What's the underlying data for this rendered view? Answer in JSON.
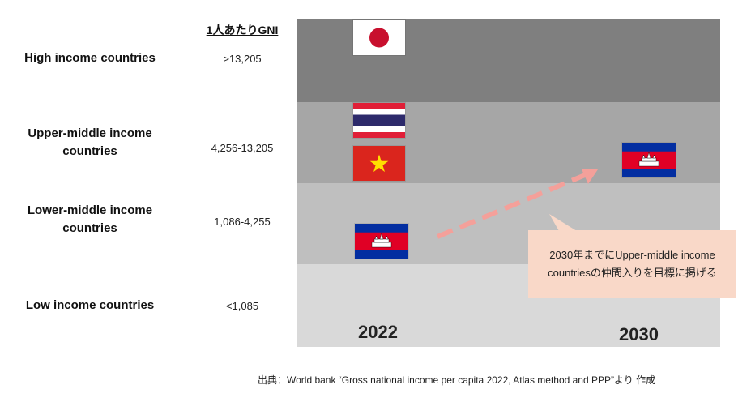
{
  "header": {
    "gni_title": "1人あたりGNI"
  },
  "categories": [
    {
      "label": "High income countries",
      "gni": ">13,205",
      "band_color": "#7f7f7f"
    },
    {
      "label": "Upper-middle income countries",
      "gni": "4,256-13,205",
      "band_color": "#a6a6a6"
    },
    {
      "label": "Lower-middle income countries",
      "gni": "1,086-4,255",
      "band_color": "#bfbfbf"
    },
    {
      "label": "Low income countries",
      "gni": "<1,085",
      "band_color": "#d9d9d9"
    }
  ],
  "years": {
    "start": "2022",
    "target": "2030"
  },
  "flags": [
    {
      "country": "Japan",
      "icon": "japan-flag-icon",
      "year": "2022",
      "category": "High income countries"
    },
    {
      "country": "Thailand",
      "icon": "thailand-flag-icon",
      "year": "2022",
      "category": "Upper-middle income countries"
    },
    {
      "country": "Vietnam",
      "icon": "vietnam-flag-icon",
      "year": "2022",
      "category": "Upper-middle income countries"
    },
    {
      "country": "Cambodia",
      "icon": "cambodia-flag-icon",
      "year": "2022",
      "category": "Lower-middle income countries"
    },
    {
      "country": "Cambodia",
      "icon": "cambodia-flag-icon",
      "year": "2030",
      "category": "Upper-middle income countries"
    }
  ],
  "callout": {
    "text": "2030年までにUpper-middle income countriesの仲間入りを目標に掲げる"
  },
  "source": "出典：World bank “Gross national income per capita 2022, Atlas method and PPP”より 作成",
  "colors": {
    "arrow": "#f4a09a",
    "callout_bg": "#f9d8c8"
  }
}
